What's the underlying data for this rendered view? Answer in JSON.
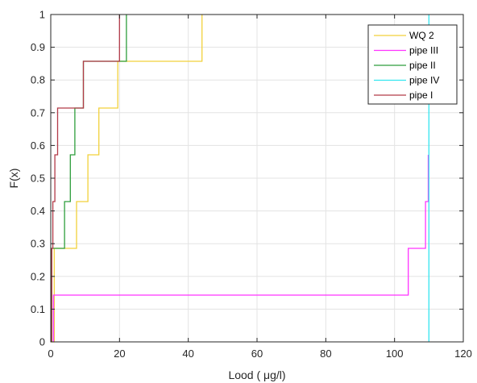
{
  "chart_data": {
    "type": "line",
    "subtype": "empirical-cdf-stairs",
    "title": "",
    "xlabel": "Lood ( μg/l)",
    "ylabel": "F(x)",
    "xlim": [
      0,
      120
    ],
    "ylim": [
      0,
      1
    ],
    "xticks": [
      0,
      20,
      40,
      60,
      80,
      100,
      120
    ],
    "yticks": [
      0,
      0.1,
      0.2,
      0.3,
      0.4,
      0.5,
      0.6,
      0.7,
      0.8,
      0.9,
      1
    ],
    "grid": true,
    "legend_position": "top-right",
    "series": [
      {
        "name": "WQ 2",
        "color": "#f2d13b",
        "x": [
          0,
          1,
          1,
          7.5,
          7.5,
          10.8,
          10.8,
          14,
          14,
          19.5,
          19.5,
          44,
          44
        ],
        "y": [
          0,
          0,
          0.2857,
          0.2857,
          0.4286,
          0.4286,
          0.5714,
          0.5714,
          0.7143,
          0.7143,
          0.8571,
          0.8571,
          1
        ]
      },
      {
        "name": "pipe III",
        "color": "#ff33ff",
        "x": [
          0.8,
          0.8,
          104,
          104,
          109,
          109,
          109.8,
          109.8
        ],
        "y": [
          0,
          0.1429,
          0.1429,
          0.2857,
          0.2857,
          0.4286,
          0.4286,
          0.5714
        ]
      },
      {
        "name": "pipe II",
        "color": "#2e9e3c",
        "x": [
          0.2,
          0.2,
          4,
          4,
          5.7,
          5.7,
          7,
          7,
          9.5,
          9.5,
          19.5,
          19.5,
          22,
          22
        ],
        "y": [
          0,
          0.2857,
          0.2857,
          0.4286,
          0.4286,
          0.5714,
          0.5714,
          0.7143,
          0.7143,
          0.8571,
          0.8571,
          0.8571,
          0.8571,
          1
        ]
      },
      {
        "name": "pipe IV",
        "color": "#33e6f0",
        "x": [
          110,
          110
        ],
        "y": [
          0,
          1
        ]
      },
      {
        "name": "pipe I",
        "color": "#b23a48",
        "x": [
          0.3,
          0.3,
          0.6,
          0.6,
          1.2,
          1.2,
          2,
          2,
          9.5,
          9.5,
          20,
          20
        ],
        "y": [
          0,
          0.2857,
          0.2857,
          0.4286,
          0.4286,
          0.5714,
          0.5714,
          0.7143,
          0.7143,
          0.8571,
          0.8571,
          1
        ]
      }
    ]
  }
}
